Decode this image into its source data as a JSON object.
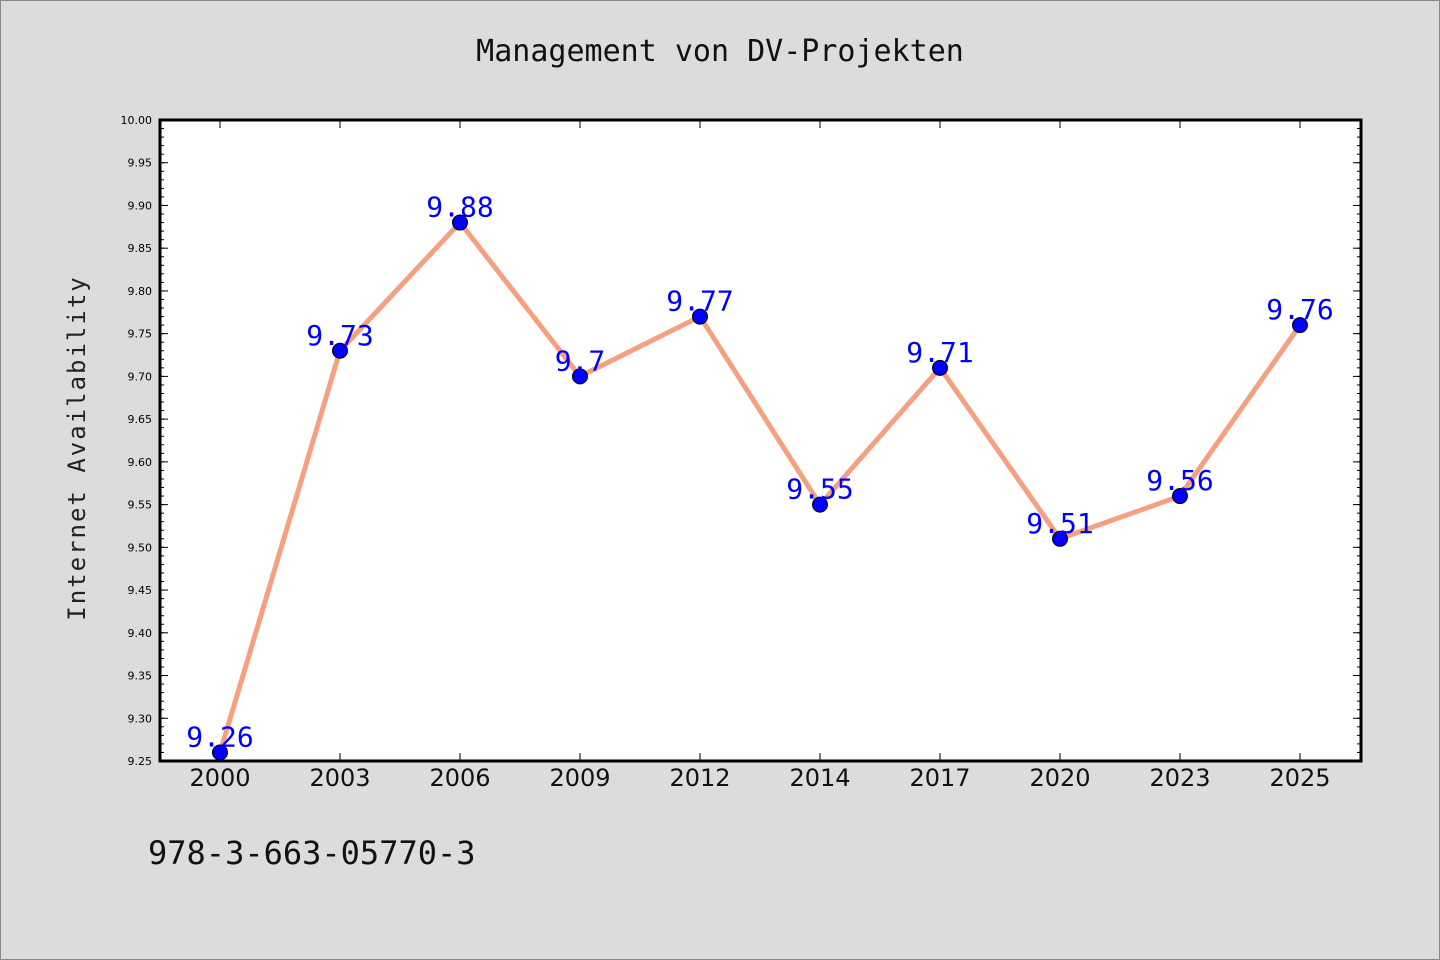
{
  "chart_data": {
    "type": "line",
    "title": "Management von DV-Projekten",
    "xlabel": "",
    "ylabel": "Internet Availability",
    "categories": [
      "2000",
      "2003",
      "2006",
      "2009",
      "2012",
      "2014",
      "2017",
      "2020",
      "2023",
      "2025"
    ],
    "series": [
      {
        "values": [
          9.26,
          9.73,
          9.88,
          9.7,
          9.77,
          9.55,
          9.71,
          9.51,
          9.56,
          9.76
        ],
        "data_labels": [
          "9.26",
          "9.73",
          "9.88",
          "9.7",
          "9.77",
          "9.55",
          "9.71",
          "9.51",
          "9.56",
          "9.76"
        ],
        "line_color": "#f5a080",
        "marker_color": "#0000ff",
        "label_color": "#0000ff"
      }
    ],
    "ylim": [
      9.25,
      10.0
    ],
    "y_ticks": [
      "9.25",
      "9.30",
      "9.35",
      "9.40",
      "9.45",
      "9.50",
      "9.55",
      "9.60",
      "9.65",
      "9.70",
      "9.75",
      "9.80",
      "9.85",
      "9.90",
      "9.95",
      "10.00"
    ],
    "grid": false,
    "legend": "none"
  },
  "footer": {
    "code": "978-3-663-05770-3"
  },
  "colors": {
    "background": "#dcdcdc",
    "plot_background": "#ffffff",
    "axis": "#000000"
  }
}
